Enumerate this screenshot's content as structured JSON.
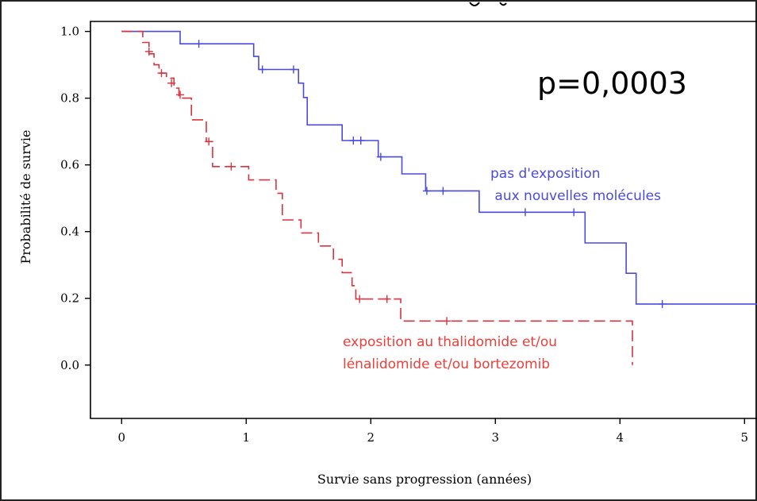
{
  "chart_data": {
    "type": "line",
    "step": true,
    "xlabel": "Survie sans progression (années)",
    "ylabel": "Probabilité de survie",
    "xlim": [
      -0.25,
      5.1
    ],
    "ylim": [
      -0.16,
      1.03
    ],
    "x_ticks": [
      0,
      1,
      2,
      3,
      4,
      5
    ],
    "y_ticks": [
      0.0,
      0.2,
      0.4,
      0.6,
      0.8,
      1.0
    ],
    "x_tick_labels": [
      "0",
      "1",
      "2",
      "3",
      "4",
      "5"
    ],
    "y_tick_labels": [
      "0.0",
      "0.2",
      "0.4",
      "0.6",
      "0.8",
      "1.0"
    ],
    "annotation": "p=0,0003",
    "series": [
      {
        "label_lines": [
          "pas d'exposition",
          " aux nouvelles molécules"
        ],
        "color": "#4a4adf",
        "style": "solid",
        "points": [
          [
            0,
            1.0
          ],
          [
            0.47,
            1.0
          ],
          [
            0.47,
            0.963
          ],
          [
            1.06,
            0.963
          ],
          [
            1.06,
            0.925
          ],
          [
            1.1,
            0.925
          ],
          [
            1.1,
            0.886
          ],
          [
            1.42,
            0.886
          ],
          [
            1.42,
            0.845
          ],
          [
            1.46,
            0.845
          ],
          [
            1.46,
            0.802
          ],
          [
            1.49,
            0.802
          ],
          [
            1.49,
            0.72
          ],
          [
            1.77,
            0.72
          ],
          [
            1.77,
            0.673
          ],
          [
            2.06,
            0.673
          ],
          [
            2.06,
            0.624
          ],
          [
            2.25,
            0.624
          ],
          [
            2.25,
            0.573
          ],
          [
            2.44,
            0.573
          ],
          [
            2.44,
            0.522
          ],
          [
            2.87,
            0.522
          ],
          [
            2.87,
            0.458
          ],
          [
            3.72,
            0.458
          ],
          [
            3.72,
            0.366
          ],
          [
            4.05,
            0.366
          ],
          [
            4.05,
            0.275
          ],
          [
            4.13,
            0.275
          ],
          [
            4.13,
            0.183
          ],
          [
            5.1,
            0.183
          ]
        ],
        "censored": [
          [
            0.62,
            0.963
          ],
          [
            1.13,
            0.886
          ],
          [
            1.38,
            0.886
          ],
          [
            1.86,
            0.673
          ],
          [
            1.92,
            0.673
          ],
          [
            2.08,
            0.624
          ],
          [
            2.45,
            0.522
          ],
          [
            2.58,
            0.522
          ],
          [
            3.24,
            0.458
          ],
          [
            3.63,
            0.458
          ],
          [
            4.34,
            0.183
          ]
        ]
      },
      {
        "label_lines": [
          "exposition au thalidomide et/ou",
          "lénalidomide et/ou bortezomib"
        ],
        "color": "#d9333f",
        "style": "dashed",
        "points": [
          [
            0,
            1.0
          ],
          [
            0.17,
            1.0
          ],
          [
            0.17,
            0.967
          ],
          [
            0.22,
            0.967
          ],
          [
            0.22,
            0.933
          ],
          [
            0.26,
            0.933
          ],
          [
            0.26,
            0.9
          ],
          [
            0.3,
            0.9
          ],
          [
            0.3,
            0.875
          ],
          [
            0.36,
            0.875
          ],
          [
            0.36,
            0.86
          ],
          [
            0.42,
            0.86
          ],
          [
            0.42,
            0.83
          ],
          [
            0.46,
            0.83
          ],
          [
            0.46,
            0.8
          ],
          [
            0.56,
            0.8
          ],
          [
            0.56,
            0.735
          ],
          [
            0.68,
            0.735
          ],
          [
            0.68,
            0.67
          ],
          [
            0.73,
            0.67
          ],
          [
            0.73,
            0.595
          ],
          [
            1.02,
            0.595
          ],
          [
            1.02,
            0.555
          ],
          [
            1.24,
            0.555
          ],
          [
            1.24,
            0.515
          ],
          [
            1.29,
            0.515
          ],
          [
            1.29,
            0.435
          ],
          [
            1.44,
            0.435
          ],
          [
            1.44,
            0.396
          ],
          [
            1.58,
            0.396
          ],
          [
            1.58,
            0.357
          ],
          [
            1.7,
            0.357
          ],
          [
            1.7,
            0.317
          ],
          [
            1.77,
            0.317
          ],
          [
            1.77,
            0.277
          ],
          [
            1.85,
            0.277
          ],
          [
            1.85,
            0.238
          ],
          [
            1.88,
            0.238
          ],
          [
            1.88,
            0.198
          ],
          [
            2.24,
            0.198
          ],
          [
            2.24,
            0.132
          ],
          [
            4.1,
            0.132
          ],
          [
            4.1,
            0.0
          ]
        ],
        "censored": [
          [
            0.22,
            0.94
          ],
          [
            0.32,
            0.875
          ],
          [
            0.4,
            0.845
          ],
          [
            0.47,
            0.81
          ],
          [
            0.7,
            0.67
          ],
          [
            0.88,
            0.595
          ],
          [
            1.91,
            0.198
          ],
          [
            2.13,
            0.198
          ],
          [
            2.61,
            0.132
          ]
        ]
      }
    ]
  }
}
